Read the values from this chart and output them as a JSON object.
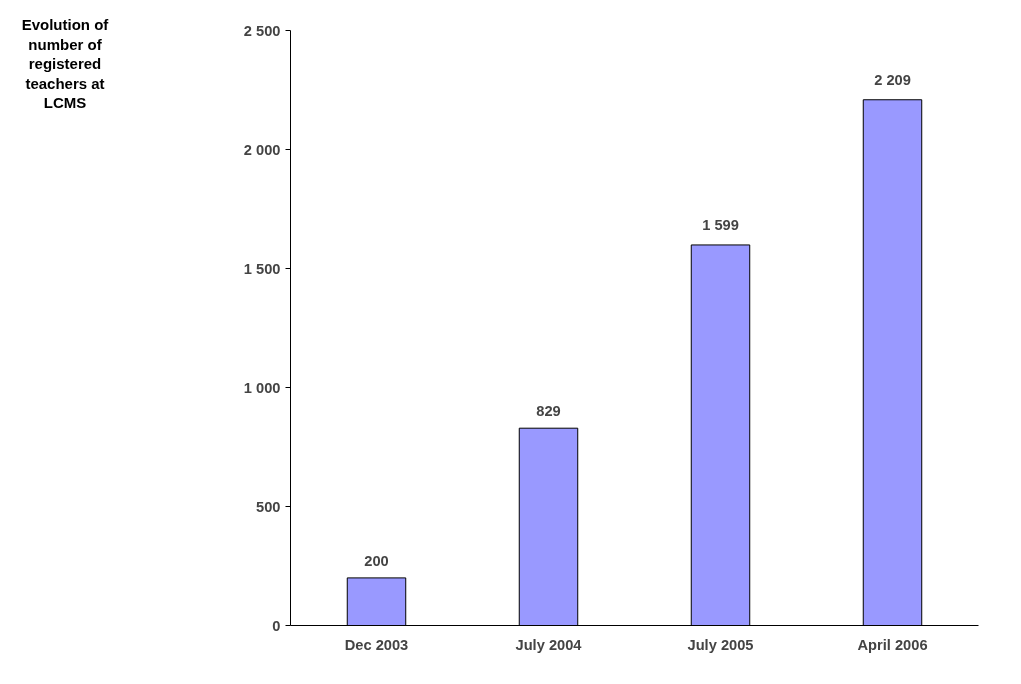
{
  "chart_data": {
    "type": "bar",
    "title": "Evolution of number of registered teachers at LCMS",
    "categories": [
      "Dec 2003",
      "July 2004",
      "July 2005",
      "April 2006"
    ],
    "values": [
      200,
      829,
      1599,
      2209
    ],
    "value_labels": [
      "200",
      "829",
      "1 599",
      "2 209"
    ],
    "color": "#9999ff",
    "ylim": [
      0,
      2500
    ],
    "yticks": [
      0,
      {
        "value": 500,
        "label": "500"
      },
      {
        "value": 1000,
        "label": "1 000"
      },
      {
        "value": 1500,
        "label": "1 500"
      },
      {
        "value": 2000,
        "label": "2 000"
      },
      {
        "value": 2500,
        "label": "2 500"
      }
    ],
    "grid": false
  }
}
